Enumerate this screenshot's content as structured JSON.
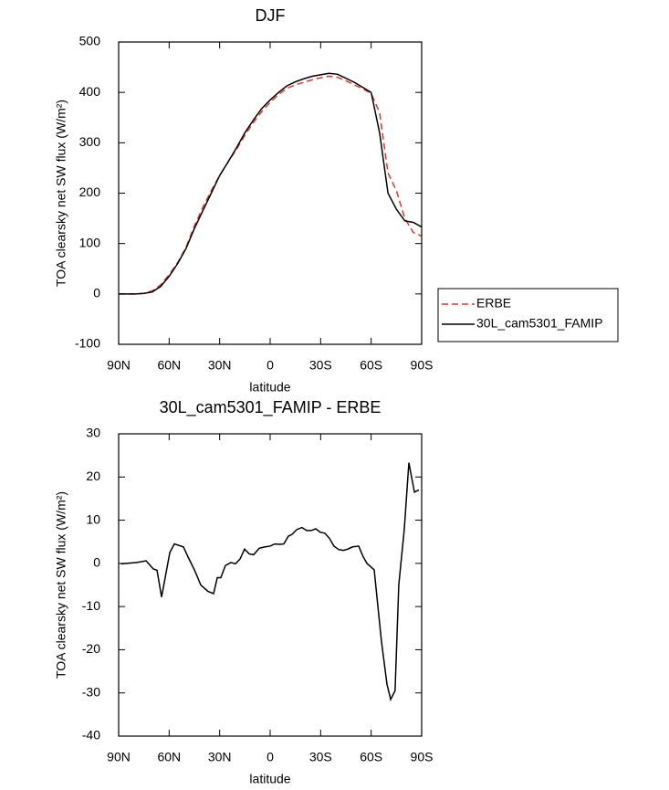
{
  "chart_data": [
    {
      "type": "line",
      "title": "DJF",
      "xlabel": "latitude",
      "ylabel": "TOA clearsky net SW flux (W/m²)",
      "x": [
        90,
        85,
        80,
        75,
        70,
        65,
        60,
        55,
        50,
        45,
        40,
        35,
        30,
        25,
        20,
        15,
        10,
        5,
        0,
        -5,
        -10,
        -15,
        -20,
        -25,
        -30,
        -35,
        -40,
        -45,
        -50,
        -55,
        -60,
        -65,
        -70,
        -75,
        -80,
        -85,
        -90
      ],
      "series": [
        {
          "name": "ERBE",
          "color": "#e8322c",
          "line_style": "dashed",
          "values": [
            0,
            0,
            0,
            1,
            6,
            18,
            38,
            62,
            92,
            135,
            172,
            205,
            235,
            262,
            287,
            315,
            340,
            362,
            380,
            396,
            408,
            415,
            420,
            425,
            429,
            432,
            430,
            423,
            415,
            407,
            398,
            360,
            240,
            205,
            150,
            122,
            115
          ]
        },
        {
          "name": "30L_cam5301_FAMIP",
          "color": "#000000",
          "line_style": "solid",
          "values": [
            0,
            0,
            0,
            1,
            4,
            15,
            35,
            60,
            90,
            130,
            165,
            200,
            235,
            262,
            290,
            320,
            345,
            368,
            385,
            400,
            413,
            421,
            427,
            432,
            435,
            438,
            436,
            428,
            420,
            410,
            400,
            320,
            200,
            168,
            145,
            142,
            133
          ]
        }
      ],
      "xlim": [
        90,
        -90
      ],
      "xticks": [
        {
          "value": 90,
          "label": "90N"
        },
        {
          "value": 60,
          "label": "60N"
        },
        {
          "value": 30,
          "label": "30N"
        },
        0,
        {
          "value": -30,
          "label": "30S"
        },
        {
          "value": -60,
          "label": "60S"
        },
        {
          "value": -90,
          "label": "90S"
        }
      ],
      "ylim": [
        -100,
        500
      ],
      "yticks": [
        -100,
        0,
        100,
        200,
        300,
        400,
        500
      ],
      "legend": "right"
    },
    {
      "type": "line",
      "title": "30L_cam5301_FAMIP - ERBE",
      "xlabel": "latitude",
      "ylabel": "TOA clearsky net SW flux (W/m²)",
      "x": [
        88.6,
        79.2,
        73.7,
        69.4,
        67.2,
        64.5,
        59.6,
        56.9,
        51.5,
        48.8,
        45,
        41.2,
        36.9,
        33.6,
        31.4,
        29.3,
        26.6,
        23.3,
        20.6,
        17.9,
        15.2,
        12.5,
        9.8,
        6.5,
        3.3,
        0,
        -2.7,
        -6,
        -8.1,
        -10.8,
        -13,
        -15.7,
        -18.9,
        -21.7,
        -24.4,
        -27.1,
        -29.8,
        -32.5,
        -35.2,
        -37.9,
        -40.7,
        -43.4,
        -46.1,
        -48.8,
        -52.6,
        -55.3,
        -57.5,
        -61.8,
        -66.1,
        -69.4,
        -71.6,
        -74.2,
        -76.4,
        -79.7,
        -82.4,
        -85.7,
        -88.4
      ],
      "values": [
        -0.1,
        0.2,
        0.6,
        -1.3,
        -1.6,
        -7.8,
        2.5,
        4.5,
        3.8,
        1.5,
        -1.5,
        -5,
        -6.5,
        -7,
        -3.3,
        -3.3,
        -0.5,
        0.2,
        -0.1,
        1,
        3.3,
        2.2,
        2,
        3.5,
        3.8,
        4,
        4.5,
        4.4,
        4.5,
        6.3,
        6.7,
        7.8,
        8.3,
        7.6,
        7.6,
        8,
        7.2,
        7,
        5.8,
        4,
        3.2,
        3,
        3.3,
        3.8,
        4,
        1.5,
        0,
        -1.5,
        -18,
        -28,
        -31.5,
        -29.5,
        -5,
        8,
        23.3,
        16.5,
        17
      ],
      "color": "#000000",
      "xlim": [
        90,
        -90
      ],
      "xticks": [
        {
          "value": 90,
          "label": "90N"
        },
        {
          "value": 60,
          "label": "60N"
        },
        {
          "value": 30,
          "label": "30N"
        },
        0,
        {
          "value": -30,
          "label": "30S"
        },
        {
          "value": -60,
          "label": "60S"
        },
        {
          "value": -90,
          "label": "90S"
        }
      ],
      "ylim": [
        -40,
        30
      ],
      "yticks": [
        -40,
        -30,
        -20,
        -10,
        0,
        10,
        20,
        30
      ]
    }
  ]
}
